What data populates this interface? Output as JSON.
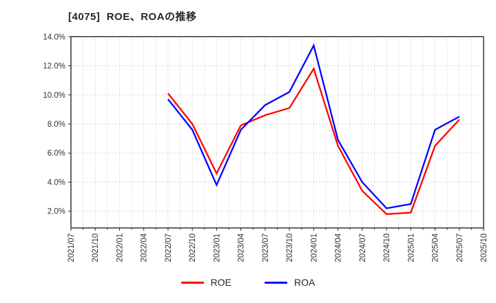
{
  "title": "[4075]  ROE、ROAの推移",
  "legend": {
    "roe_label": "ROE",
    "roa_label": "ROA"
  },
  "colors": {
    "roe": "#ff0000",
    "roa": "#0000ff",
    "grid": "#b3b3b3",
    "axis": "#262626",
    "tick_text": "#333333"
  },
  "chart_data": {
    "type": "line",
    "title": "[4075] ROE、ROAの推移",
    "xlabel": "",
    "ylabel": "",
    "x_axis_ticks": [
      "2021/07",
      "2021/10",
      "2022/01",
      "2022/04",
      "2022/07",
      "2022/10",
      "2023/01",
      "2023/04",
      "2023/07",
      "2023/10",
      "2024/01",
      "2024/04",
      "2024/07",
      "2024/10",
      "2025/01",
      "2025/04",
      "2025/07",
      "2025/10"
    ],
    "y_tick_labels": [
      "14.0%",
      "12.0%",
      "10.0%",
      "8.0%",
      "6.0%",
      "4.0%",
      "2.0%"
    ],
    "y_tick_values": [
      14,
      12,
      10,
      8,
      6,
      4,
      2
    ],
    "ylim": [
      0.85,
      14.0
    ],
    "grid": "dotted; horizontal at every 2%, vertical at quarter and mid-quarter positions",
    "legend_position": "bottom-center",
    "categories": [
      "2022/07",
      "2022/10",
      "2023/01",
      "2023/04",
      "2023/07",
      "2023/10",
      "2024/01",
      "2024/04",
      "2024/07",
      "2024/10",
      "2025/01",
      "2025/04",
      "2025/07"
    ],
    "series": [
      {
        "name": "ROE",
        "color": "#ff0000",
        "values": [
          10.1,
          8.0,
          4.6,
          7.9,
          8.6,
          9.1,
          11.8,
          6.5,
          3.4,
          1.8,
          1.9,
          6.5,
          8.3
        ]
      },
      {
        "name": "ROA",
        "color": "#0000ff",
        "values": [
          9.7,
          7.6,
          3.8,
          7.6,
          9.3,
          10.2,
          13.4,
          6.9,
          4.0,
          2.2,
          2.5,
          7.6,
          8.5
        ]
      }
    ]
  }
}
